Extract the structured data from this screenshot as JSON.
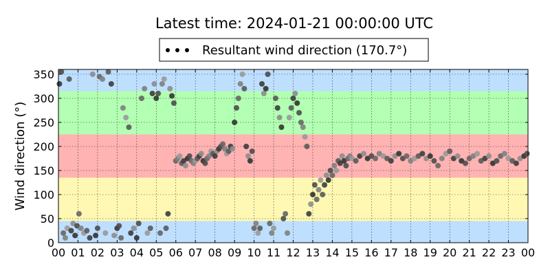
{
  "chart_data": {
    "type": "scatter",
    "title": "Latest time: 2024-01-21 00:00:00 UTC",
    "ylabel": "Wind direction (°)",
    "xlabel": "",
    "legend": {
      "label": "Resultant wind direction (170.7°)",
      "placement": "top-center"
    },
    "xlim": [
      0,
      24
    ],
    "ylim": [
      0,
      360
    ],
    "x_ticks": [
      "00",
      "01",
      "02",
      "03",
      "04",
      "05",
      "06",
      "07",
      "08",
      "09",
      "10",
      "11",
      "12",
      "13",
      "14",
      "15",
      "16",
      "17",
      "18",
      "19",
      "20",
      "21",
      "22",
      "23",
      "00"
    ],
    "y_ticks": [
      0,
      50,
      100,
      150,
      200,
      250,
      300,
      350
    ],
    "grid": true,
    "bands": [
      {
        "from": 0,
        "to": 45,
        "color": "#bfdfff"
      },
      {
        "from": 45,
        "to": 135,
        "color": "#fff8b3"
      },
      {
        "from": 135,
        "to": 225,
        "color": "#ffb3b3"
      },
      {
        "from": 225,
        "to": 315,
        "color": "#b3ffb3"
      },
      {
        "from": 315,
        "to": 360,
        "color": "#bfdfff"
      }
    ],
    "series": [
      {
        "name": "Resultant wind direction (170.7°)",
        "color": "#4a4a4a",
        "x": [
          0.05,
          0.15,
          0.25,
          0.35,
          0.45,
          0.55,
          0.65,
          0.75,
          0.85,
          0.95,
          1.05,
          1.15,
          1.3,
          1.45,
          1.6,
          1.75,
          1.9,
          2.0,
          2.1,
          2.25,
          2.4,
          2.55,
          2.7,
          2.85,
          3.0,
          3.1,
          3.2,
          3.3,
          3.45,
          3.6,
          3.7,
          3.85,
          4.0,
          4.1,
          4.25,
          4.4,
          4.55,
          4.7,
          4.8,
          4.9,
          5.0,
          5.1,
          5.2,
          5.3,
          5.4,
          5.5,
          5.6,
          5.7,
          5.8,
          5.9,
          6.0,
          6.1,
          6.2,
          6.3,
          6.4,
          6.5,
          6.6,
          6.7,
          6.8,
          6.9,
          7.0,
          7.1,
          7.2,
          7.3,
          7.4,
          7.5,
          7.6,
          7.7,
          7.8,
          7.9,
          8.0,
          8.1,
          8.2,
          8.3,
          8.4,
          8.5,
          8.6,
          8.7,
          8.8,
          8.9,
          9.0,
          9.1,
          9.2,
          9.3,
          9.4,
          9.5,
          9.6,
          9.7,
          9.8,
          9.9,
          10.0,
          10.1,
          10.2,
          10.3,
          10.4,
          10.5,
          10.6,
          10.7,
          10.8,
          10.9,
          11.0,
          11.1,
          11.2,
          11.3,
          11.4,
          11.5,
          11.6,
          11.7,
          11.8,
          11.9,
          12.0,
          12.1,
          12.2,
          12.3,
          12.4,
          12.5,
          12.6,
          12.7,
          12.8,
          12.9,
          13.0,
          13.1,
          13.2,
          13.3,
          13.4,
          13.5,
          13.6,
          13.7,
          13.8,
          13.9,
          14.0,
          14.1,
          14.2,
          14.3,
          14.4,
          14.5,
          14.6,
          14.7,
          14.8,
          14.9,
          15.0,
          15.2,
          15.4,
          15.6,
          15.8,
          16.0,
          16.2,
          16.4,
          16.6,
          16.8,
          17.0,
          17.2,
          17.4,
          17.6,
          17.8,
          18.0,
          18.2,
          18.4,
          18.6,
          18.8,
          19.0,
          19.2,
          19.4,
          19.6,
          19.8,
          20.0,
          20.2,
          20.4,
          20.6,
          20.8,
          21.0,
          21.2,
          21.4,
          21.6,
          21.8,
          22.0,
          22.2,
          22.4,
          22.6,
          22.8,
          23.0,
          23.2,
          23.4,
          23.6,
          23.8,
          23.95
        ],
        "y": [
          330,
          355,
          20,
          10,
          30,
          340,
          25,
          40,
          15,
          35,
          60,
          30,
          20,
          25,
          10,
          350,
          15,
          30,
          345,
          340,
          20,
          355,
          330,
          15,
          30,
          35,
          10,
          280,
          260,
          240,
          20,
          30,
          10,
          40,
          300,
          320,
          20,
          30,
          310,
          330,
          300,
          310,
          20,
          330,
          340,
          30,
          60,
          320,
          305,
          290,
          170,
          175,
          180,
          165,
          170,
          160,
          175,
          180,
          170,
          165,
          170,
          175,
          180,
          185,
          170,
          165,
          175,
          180,
          190,
          185,
          180,
          190,
          195,
          200,
          205,
          195,
          185,
          190,
          200,
          195,
          250,
          280,
          300,
          330,
          350,
          320,
          200,
          180,
          170,
          190,
          30,
          40,
          20,
          30,
          330,
          310,
          320,
          350,
          40,
          20,
          30,
          300,
          280,
          260,
          240,
          50,
          60,
          20,
          260,
          280,
          300,
          310,
          290,
          270,
          250,
          240,
          220,
          200,
          60,
          80,
          100,
          120,
          90,
          110,
          130,
          100,
          120,
          140,
          130,
          150,
          140,
          160,
          150,
          170,
          165,
          180,
          170,
          160,
          175,
          180,
          175,
          170,
          180,
          185,
          175,
          180,
          175,
          185,
          180,
          175,
          170,
          180,
          185,
          175,
          180,
          170,
          175,
          180,
          185,
          175,
          180,
          170,
          160,
          175,
          185,
          190,
          175,
          180,
          170,
          165,
          175,
          180,
          185,
          170,
          175,
          180,
          165,
          170,
          180,
          185,
          175,
          170,
          165,
          175,
          180,
          185
        ]
      }
    ]
  }
}
